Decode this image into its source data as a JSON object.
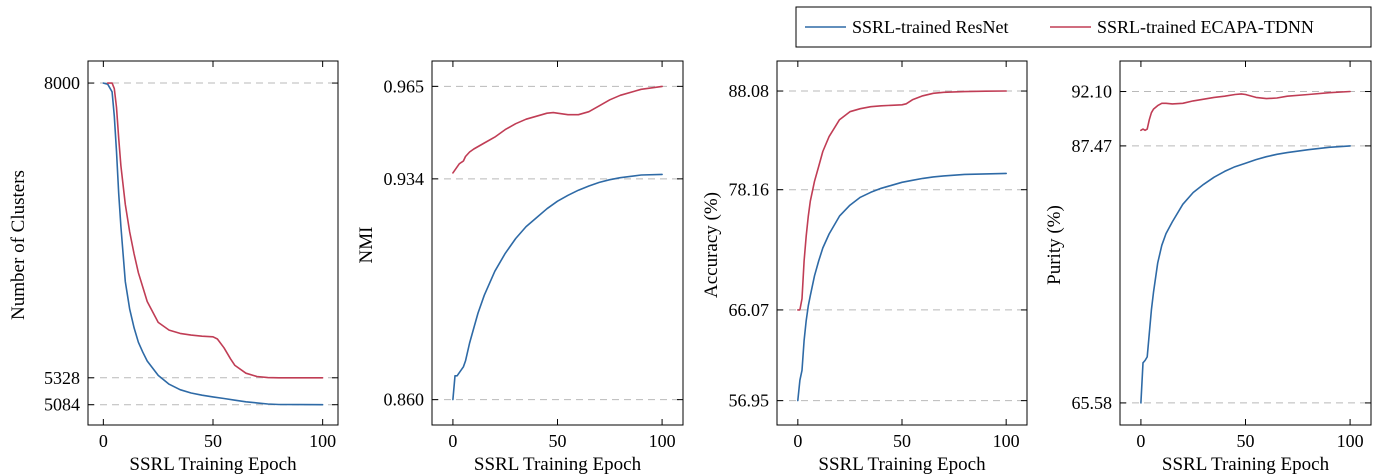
{
  "legend": {
    "position": "top-right",
    "entries": [
      {
        "label": "SSRL-trained ResNet",
        "color": "#2e6aa6"
      },
      {
        "label": "SSRL-trained ECAPA-TDNN",
        "color": "#c03d55"
      }
    ]
  },
  "chart_data": [
    {
      "type": "line",
      "xlabel": "SSRL Training Epoch",
      "ylabel": "Number of Clusters",
      "xticks": [
        0,
        50,
        100
      ],
      "xtick_labels": [
        "0",
        "50",
        "100"
      ],
      "yticks": [
        8000,
        5328,
        5084
      ],
      "ytick_labels": [
        "8000",
        "5328",
        "5084"
      ],
      "xlim": [
        -7,
        107
      ],
      "ylim": [
        4900,
        8200
      ],
      "ref_lines": [
        8000,
        5328,
        5084
      ],
      "series": [
        {
          "name": "SSRL-trained ResNet",
          "color": "#2e6aa6",
          "x": [
            0,
            2,
            4,
            5,
            6,
            7,
            8,
            10,
            12,
            14,
            16,
            18,
            20,
            25,
            30,
            35,
            40,
            45,
            50,
            55,
            60,
            65,
            70,
            75,
            80,
            90,
            100
          ],
          "y": [
            8000,
            7990,
            7920,
            7700,
            7380,
            7000,
            6700,
            6200,
            5950,
            5780,
            5650,
            5560,
            5480,
            5350,
            5270,
            5220,
            5190,
            5170,
            5155,
            5140,
            5125,
            5110,
            5100,
            5090,
            5086,
            5085,
            5084
          ]
        },
        {
          "name": "SSRL-trained ECAPA-TDNN",
          "color": "#c03d55",
          "x": [
            2,
            3,
            4,
            5,
            6,
            7,
            8,
            10,
            12,
            14,
            16,
            18,
            20,
            25,
            30,
            35,
            40,
            45,
            50,
            52,
            55,
            58,
            60,
            65,
            70,
            75,
            80,
            90,
            100
          ],
          "y": [
            8000,
            8000,
            8000,
            7950,
            7780,
            7500,
            7250,
            6900,
            6650,
            6450,
            6280,
            6150,
            6020,
            5830,
            5760,
            5730,
            5715,
            5705,
            5700,
            5680,
            5600,
            5500,
            5440,
            5370,
            5340,
            5330,
            5328,
            5328,
            5328
          ]
        }
      ]
    },
    {
      "type": "line",
      "xlabel": "SSRL Training Epoch",
      "ylabel": "NMI",
      "xticks": [
        0,
        50,
        100
      ],
      "xtick_labels": [
        "0",
        "50",
        "100"
      ],
      "yticks": [
        0.965,
        0.934,
        0.86
      ],
      "ytick_labels": [
        "0.965",
        "0.934",
        "0.860"
      ],
      "xlim": [
        -10,
        110
      ],
      "ylim": [
        0.8515,
        0.9735
      ],
      "ref_lines": [
        0.965,
        0.934,
        0.86
      ],
      "series": [
        {
          "name": "SSRL-trained ResNet",
          "color": "#2e6aa6",
          "x": [
            0,
            1,
            2,
            3,
            4,
            5,
            6,
            8,
            10,
            12,
            15,
            20,
            25,
            30,
            35,
            40,
            45,
            50,
            55,
            60,
            65,
            70,
            75,
            80,
            90,
            100
          ],
          "y": [
            0.86,
            0.868,
            0.868,
            0.869,
            0.87,
            0.871,
            0.873,
            0.879,
            0.884,
            0.889,
            0.895,
            0.903,
            0.909,
            0.914,
            0.918,
            0.921,
            0.924,
            0.9265,
            0.9285,
            0.9302,
            0.9316,
            0.9328,
            0.9337,
            0.9344,
            0.9353,
            0.9355
          ]
        },
        {
          "name": "SSRL-trained ECAPA-TDNN",
          "color": "#c03d55",
          "x": [
            0,
            1,
            2,
            3,
            4,
            5,
            6,
            8,
            10,
            15,
            20,
            25,
            30,
            35,
            40,
            45,
            48,
            50,
            55,
            60,
            65,
            70,
            75,
            80,
            90,
            100
          ],
          "y": [
            0.936,
            0.937,
            0.938,
            0.939,
            0.9395,
            0.94,
            0.9415,
            0.943,
            0.944,
            0.946,
            0.948,
            0.9505,
            0.9525,
            0.954,
            0.955,
            0.956,
            0.9562,
            0.956,
            0.9555,
            0.9555,
            0.9565,
            0.9585,
            0.9605,
            0.962,
            0.964,
            0.965
          ]
        }
      ]
    },
    {
      "type": "line",
      "xlabel": "SSRL Training Epoch",
      "ylabel": "Accuracy (%)",
      "xticks": [
        0,
        50,
        100
      ],
      "xtick_labels": [
        "0",
        "50",
        "100"
      ],
      "yticks": [
        88.08,
        78.16,
        66.07,
        56.95
      ],
      "ytick_labels": [
        "88.08",
        "78.16",
        "66.07",
        "56.95"
      ],
      "xlim": [
        -10,
        110
      ],
      "ylim": [
        54.5,
        91.1
      ],
      "ref_lines": [
        88.08,
        78.16,
        66.07,
        56.95
      ],
      "series": [
        {
          "name": "SSRL-trained ResNet",
          "color": "#2e6aa6",
          "x": [
            0,
            1,
            2,
            3,
            4,
            5,
            6,
            8,
            10,
            12,
            15,
            20,
            25,
            30,
            35,
            40,
            45,
            50,
            55,
            60,
            65,
            70,
            80,
            90,
            100
          ],
          "y": [
            56.95,
            59,
            60,
            63,
            65,
            66.5,
            67.5,
            69.5,
            71,
            72.3,
            73.7,
            75.5,
            76.6,
            77.4,
            77.9,
            78.3,
            78.6,
            78.9,
            79.1,
            79.3,
            79.45,
            79.55,
            79.7,
            79.75,
            79.8
          ]
        },
        {
          "name": "SSRL-trained ECAPA-TDNN",
          "color": "#c03d55",
          "x": [
            0,
            1,
            2,
            3,
            4,
            5,
            6,
            8,
            10,
            12,
            15,
            20,
            25,
            30,
            35,
            40,
            45,
            50,
            52,
            55,
            60,
            65,
            70,
            80,
            90,
            100
          ],
          "y": [
            66.07,
            66.07,
            67.2,
            71,
            73.5,
            75.5,
            77,
            79,
            80.5,
            82,
            83.5,
            85.2,
            86,
            86.3,
            86.5,
            86.6,
            86.65,
            86.7,
            86.8,
            87.2,
            87.6,
            87.85,
            87.95,
            88.02,
            88.06,
            88.08
          ]
        }
      ]
    },
    {
      "type": "line",
      "xlabel": "SSRL Training Epoch",
      "ylabel": "Purity (%)",
      "xticks": [
        0,
        50,
        100
      ],
      "xtick_labels": [
        "0",
        "50",
        "100"
      ],
      "yticks": [
        92.1,
        87.47,
        65.58
      ],
      "ytick_labels": [
        "92.10",
        "87.47",
        "65.58"
      ],
      "xlim": [
        -10,
        110
      ],
      "ylim": [
        63.7,
        94.7
      ],
      "ref_lines": [
        92.1,
        87.47,
        65.58
      ],
      "series": [
        {
          "name": "SSRL-trained ResNet",
          "color": "#2e6aa6",
          "x": [
            0,
            1,
            2,
            3,
            4,
            5,
            6,
            8,
            10,
            12,
            15,
            20,
            25,
            30,
            35,
            40,
            45,
            50,
            55,
            60,
            65,
            70,
            80,
            90,
            100
          ],
          "y": [
            65.58,
            69,
            69.2,
            69.5,
            71.5,
            73.5,
            75,
            77.5,
            79,
            80,
            81,
            82.5,
            83.5,
            84.2,
            84.8,
            85.3,
            85.7,
            86,
            86.3,
            86.55,
            86.75,
            86.9,
            87.15,
            87.35,
            87.47
          ]
        },
        {
          "name": "SSRL-trained ECAPA-TDNN",
          "color": "#c03d55",
          "x": [
            0,
            1,
            2,
            3,
            4,
            5,
            6,
            8,
            10,
            12,
            15,
            20,
            25,
            30,
            35,
            40,
            45,
            48,
            50,
            55,
            60,
            65,
            70,
            80,
            90,
            100
          ],
          "y": [
            88.8,
            88.9,
            88.8,
            88.9,
            89.7,
            90.3,
            90.6,
            90.9,
            91.1,
            91.1,
            91.05,
            91.1,
            91.3,
            91.45,
            91.6,
            91.7,
            91.85,
            91.9,
            91.85,
            91.6,
            91.5,
            91.55,
            91.7,
            91.85,
            92,
            92.1
          ]
        }
      ]
    }
  ]
}
